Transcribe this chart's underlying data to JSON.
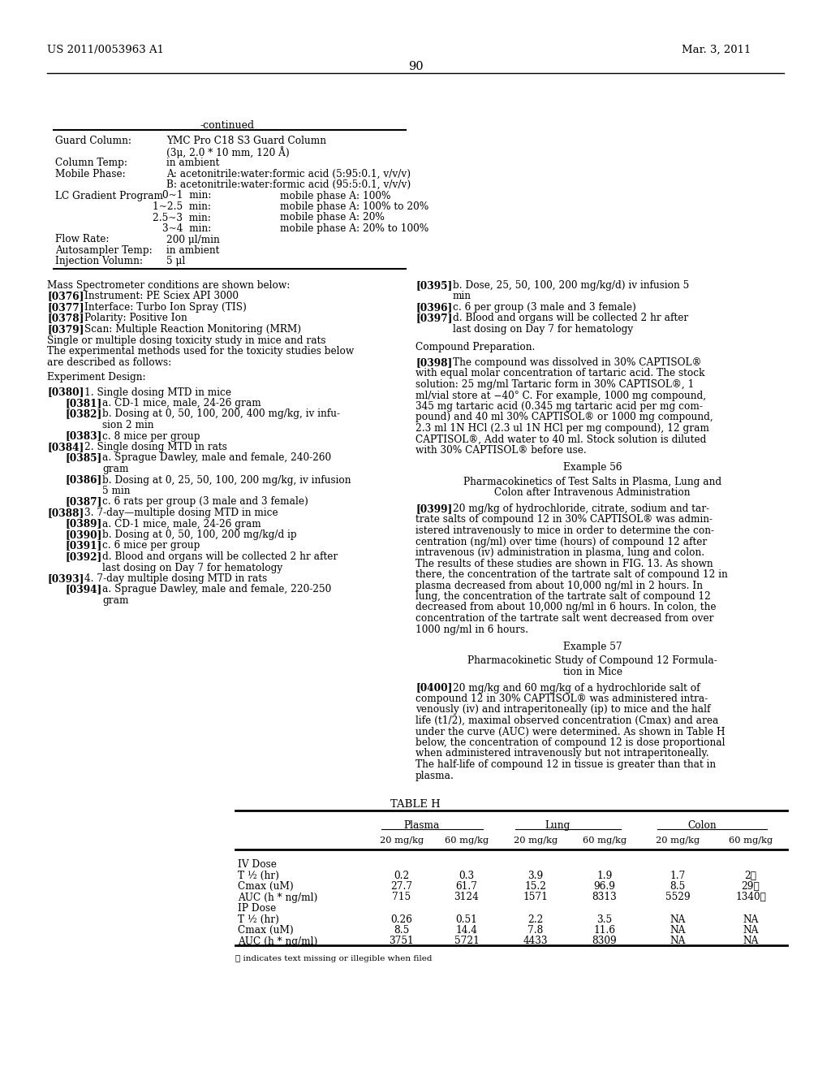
{
  "patent_number": "US 2011/0053963 A1",
  "date": "Mar. 3, 2011",
  "page_number": "90",
  "background_color": "#ffffff",
  "continued_label": "-continued",
  "table1_rows": [
    [
      "Guard Column:",
      "YMC Pro C18 S3 Guard Column\n(3μ, 2.0 * 10 mm, 120 Å)"
    ],
    [
      "Column Temp:",
      "in ambient"
    ],
    [
      "Mobile Phase:",
      "A: acetonitrile:water:formic acid (5:95:0.1, v/v/v)\nB: acetonitrile:water:formic acid (95:5:0.1, v/v/v)"
    ],
    [
      "LC Gradient Program",
      ""
    ],
    [
      "Flow Rate:",
      "200 μl/min"
    ],
    [
      "Autosampler Temp:",
      "in ambient"
    ],
    [
      "Injection Volumn:",
      "5 μl"
    ]
  ],
  "lc_gradient_rows": [
    [
      "0~1  min:",
      "mobile phase A: 100%"
    ],
    [
      "1~2.5  min:",
      "mobile phase A: 100% to 20%"
    ],
    [
      "2.5~3  min:",
      "mobile phase A: 20%"
    ],
    [
      "3~4  min:",
      "mobile phase A: 20% to 100%"
    ]
  ],
  "table_h_title": "TABLE H",
  "table_h_col_groups": [
    "Plasma",
    "Lung",
    "Colon"
  ],
  "table_h_subheaders": [
    "20 mg/kg",
    "60 mg/kg",
    "20 mg/kg",
    "60 mg/kg",
    "20 mg/kg",
    "60 mg/kg"
  ],
  "table_h_iv_label": "IV Dose",
  "table_h_ip_label": "IP Dose",
  "table_h_iv_rows": [
    [
      "T ½ (hr)",
      "0.2",
      "0.3",
      "3.9",
      "1.9",
      "1.7",
      "2ⓘ"
    ],
    [
      "Cmax (uM)",
      "27.7",
      "61.7",
      "15.2",
      "96.9",
      "8.5",
      "29ⓘ"
    ],
    [
      "AUC (h * ng/ml)",
      "715",
      "3124",
      "1571",
      "8313",
      "5529",
      "1340ⓘ"
    ]
  ],
  "table_h_ip_rows": [
    [
      "T ½ (hr)",
      "0.26",
      "0.51",
      "2.2",
      "3.5",
      "NA",
      "NA"
    ],
    [
      "Cmax (uM)",
      "8.5",
      "14.4",
      "7.8",
      "11.6",
      "NA",
      "NA"
    ],
    [
      "AUC (h * ng/ml)",
      "3751",
      "5721",
      "4433",
      "8309",
      "NA",
      "NA"
    ]
  ],
  "table_h_footnote": "ⓘ indicates text missing or illegible when filed"
}
